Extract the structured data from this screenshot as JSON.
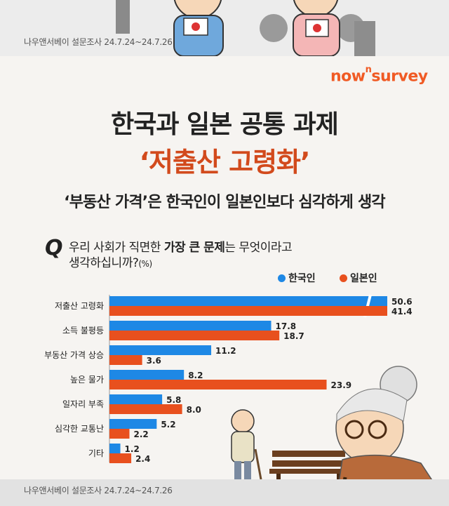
{
  "survey_note": "나우앤서베이 설문조사 24.7.24~24.7.26",
  "logo": {
    "main": "now",
    "sup": "n",
    "tail": "survey"
  },
  "title_line1": "한국과 일본 공통 과제",
  "title_line2": "‘저출산 고령화’",
  "subtitle": "‘부동산 가격’은 한국인이 일본인보다 심각하게 생각",
  "question": {
    "mark": "Q",
    "pre": "우리 사회가 직면한 ",
    "bold": "가장 큰 문제",
    "post": "는 무엇이라고",
    "line2": "생각하십니까?",
    "unit": "(%)"
  },
  "colors": {
    "korea": "#1e88e5",
    "japan": "#e8501e",
    "accent": "#d24a1c",
    "logo": "#f05a24"
  },
  "chart_data": {
    "type": "bar",
    "orientation": "horizontal",
    "categories": [
      "저출산 고령화",
      "소득 불평등",
      "부동산 가격 상승",
      "높은 물가",
      "일자리 부족",
      "심각한 교통난",
      "기타"
    ],
    "series": [
      {
        "name": "한국인",
        "values": [
          50.6,
          17.8,
          11.2,
          8.2,
          5.8,
          5.2,
          1.2
        ]
      },
      {
        "name": "일본인",
        "values": [
          41.4,
          18.7,
          3.6,
          23.9,
          8.0,
          2.2,
          2.4
        ]
      }
    ],
    "value_labels": {
      "한국인": [
        "50.6",
        "17.8",
        "11.2",
        "8.2",
        "5.8",
        "5.2",
        "1.2"
      ],
      "일본인": [
        "41.4",
        "18.7",
        "3.6",
        "23.9",
        "8.0",
        "2.2",
        "2.4"
      ]
    },
    "axis_break_on_first": true,
    "legend_position": "top-right",
    "grid": false
  }
}
